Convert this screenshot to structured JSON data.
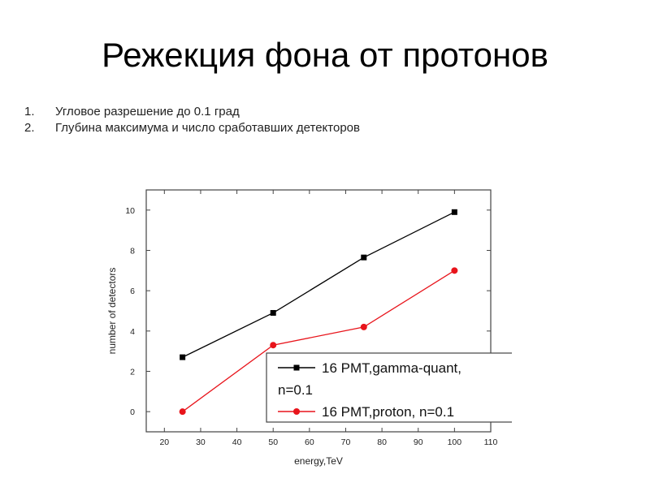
{
  "slide": {
    "title": "Режекция фона от протонов",
    "items": [
      {
        "num": "1.",
        "text": "Угловое разрешение до 0.1 град"
      },
      {
        "num": "2.",
        "text": "Глубина максимума и число сработавших детекторов"
      }
    ]
  },
  "chart_data": {
    "type": "line",
    "xlabel": "energy,TeV",
    "ylabel": "number of detectors",
    "xlim": [
      15,
      110
    ],
    "ylim": [
      -1,
      11
    ],
    "xticks": [
      20,
      30,
      40,
      50,
      60,
      70,
      80,
      90,
      100,
      110
    ],
    "yticks": [
      0,
      2,
      4,
      6,
      8,
      10
    ],
    "grid": false,
    "legend_position": "bottom-right",
    "series": [
      {
        "name": "16 PMT,gamma-quant, n=0.1",
        "legend_lines": [
          "16 PMT,gamma-quant,",
          "n=0.1"
        ],
        "marker": "square",
        "color": "#000000",
        "x": [
          25,
          50,
          75,
          100
        ],
        "y": [
          2.7,
          4.9,
          7.65,
          9.9
        ]
      },
      {
        "name": "16 PMT,proton, n=0.1",
        "legend_lines": [
          "16 PMT,proton, n=0.1"
        ],
        "marker": "circle",
        "color": "#e8141b",
        "x": [
          25,
          50,
          75,
          100
        ],
        "y": [
          0,
          3.3,
          4.2,
          7
        ]
      }
    ]
  }
}
